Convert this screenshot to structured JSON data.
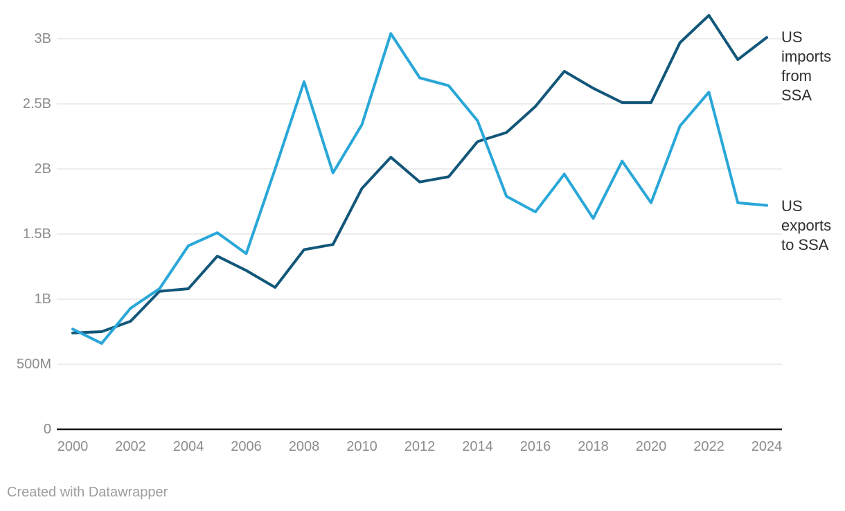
{
  "attribution": "Created with Datawrapper",
  "colors": {
    "imports_line": "#12577a",
    "exports_line": "#29a7d8",
    "grid": "#e2e2e2",
    "axis": "#161616",
    "tick_label": "#8c8c8c",
    "series_label": "#2e2e2e",
    "attribution": "#9e9e9e"
  },
  "chart_data": {
    "type": "line",
    "x": [
      2000,
      2001,
      2002,
      2003,
      2004,
      2005,
      2006,
      2007,
      2008,
      2009,
      2010,
      2011,
      2012,
      2013,
      2014,
      2015,
      2016,
      2017,
      2018,
      2019,
      2020,
      2021,
      2022,
      2023,
      2024
    ],
    "series": [
      {
        "name": "US imports from SSA",
        "color": "#12577a",
        "values": [
          0.74,
          0.75,
          0.83,
          1.06,
          1.08,
          1.33,
          1.22,
          1.09,
          1.38,
          1.42,
          1.85,
          2.09,
          1.9,
          1.94,
          2.21,
          2.28,
          2.48,
          2.75,
          2.62,
          2.51,
          2.51,
          2.97,
          3.18,
          2.84,
          3.01
        ]
      },
      {
        "name": "US exports to SSA",
        "color": "#29a7d8",
        "values": [
          0.77,
          0.66,
          0.93,
          1.08,
          1.41,
          1.51,
          1.35,
          2.0,
          2.67,
          1.97,
          2.34,
          3.04,
          2.7,
          2.64,
          2.37,
          1.79,
          1.67,
          1.96,
          1.62,
          2.06,
          1.74,
          2.33,
          2.59,
          1.74,
          1.72
        ]
      }
    ],
    "values_unit": "B",
    "y_ticks": [
      {
        "value": 0,
        "label": "0"
      },
      {
        "value": 0.5,
        "label": "500M"
      },
      {
        "value": 1,
        "label": "1B"
      },
      {
        "value": 1.5,
        "label": "1.5B"
      },
      {
        "value": 2,
        "label": "2B"
      },
      {
        "value": 2.5,
        "label": "2.5B"
      },
      {
        "value": 3,
        "label": "3B"
      }
    ],
    "x_tick_labels": [
      "2000",
      "2002",
      "2004",
      "2006",
      "2008",
      "2010",
      "2012",
      "2014",
      "2016",
      "2018",
      "2020",
      "2022",
      "2024"
    ],
    "xlim": [
      2000,
      2024
    ],
    "ylim": [
      0,
      3.3
    ],
    "grid": "horizontal",
    "legend_position": "direct-labels-right"
  }
}
